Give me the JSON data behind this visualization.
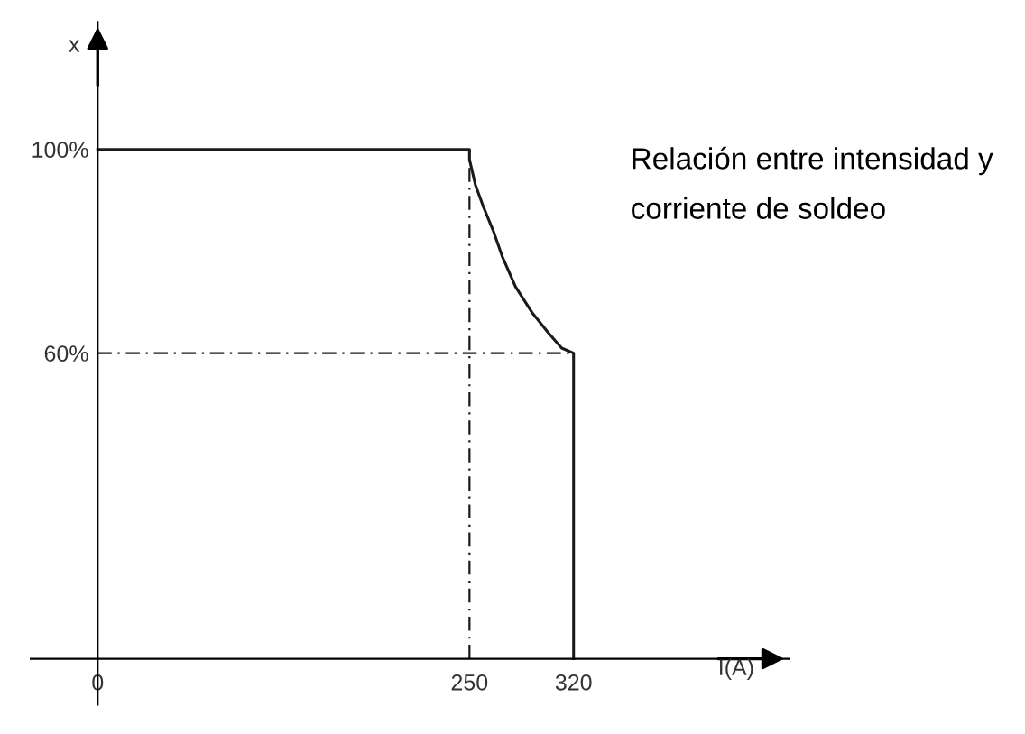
{
  "chart_data": {
    "type": "line",
    "xlabel": "I(A)",
    "ylabel": "x",
    "xlim": [
      -45,
      465
    ],
    "ylim": [
      -9,
      125
    ],
    "xticks": [
      0,
      250,
      320
    ],
    "yticks": [
      {
        "value": 60,
        "label": "60%"
      },
      {
        "value": 100,
        "label": "100%"
      }
    ],
    "series": [
      {
        "color": "#1a1a1a",
        "x": [
          0,
          250,
          250,
          254,
          259,
          266,
          272,
          281,
          292,
          303,
          312,
          320,
          320
        ],
        "values": [
          100,
          100,
          98,
          93,
          89,
          84,
          79,
          73,
          68,
          64,
          61,
          60,
          0
        ]
      }
    ],
    "ref_lines": [
      {
        "axis": "x",
        "value": 250,
        "line_style": "dashed",
        "color": "#1a1a1a"
      },
      {
        "axis": "y",
        "value": 60,
        "line_style": "dashed",
        "color": "#1a1a1a"
      }
    ],
    "annotations": [
      "Relación entre intensidad y corriente de soldeo"
    ],
    "grid": false,
    "legend": false,
    "marker": "none",
    "line_style": "solid"
  }
}
